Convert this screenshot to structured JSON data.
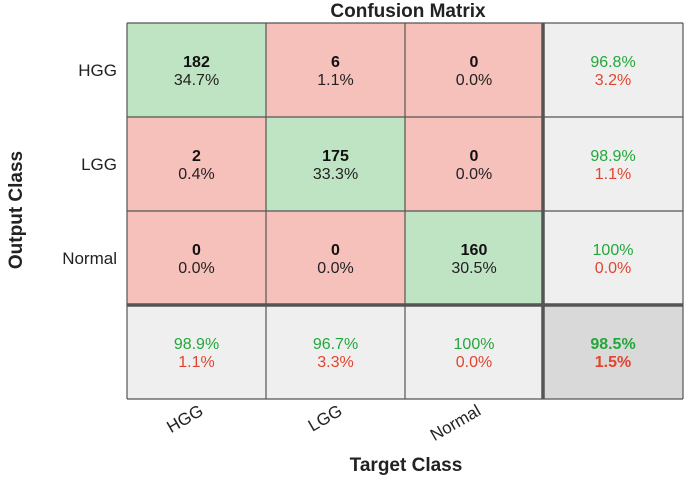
{
  "chart_data": {
    "type": "heatmap",
    "title": "Confusion Matrix",
    "xlabel": "Target Class",
    "ylabel": "Output Class",
    "classes": [
      "HGG",
      "LGG",
      "Normal"
    ],
    "counts": [
      [
        182,
        6,
        0
      ],
      [
        2,
        175,
        0
      ],
      [
        0,
        0,
        160
      ]
    ],
    "percents": [
      [
        "34.7%",
        "1.1%",
        "0.0%"
      ],
      [
        "0.4%",
        "33.3%",
        "0.0%"
      ],
      [
        "0.0%",
        "0.0%",
        "30.5%"
      ]
    ],
    "row_summary": [
      {
        "correct": "96.8%",
        "incorrect": "3.2%"
      },
      {
        "correct": "98.9%",
        "incorrect": "1.1%"
      },
      {
        "correct": "100%",
        "incorrect": "0.0%"
      }
    ],
    "col_summary": [
      {
        "correct": "98.9%",
        "incorrect": "1.1%"
      },
      {
        "correct": "96.7%",
        "incorrect": "3.3%"
      },
      {
        "correct": "100%",
        "incorrect": "0.0%"
      }
    ],
    "overall": {
      "correct": "98.5%",
      "incorrect": "1.5%"
    },
    "colors": {
      "correct_cell": "#bfe4c4",
      "incorrect_cell": "#f6c0bb",
      "summary_cell": "#efefef",
      "overall_cell": "#d9d9d9",
      "correct_text": "#22a83a",
      "incorrect_text": "#e0452f",
      "grid_line": "#555555"
    }
  }
}
